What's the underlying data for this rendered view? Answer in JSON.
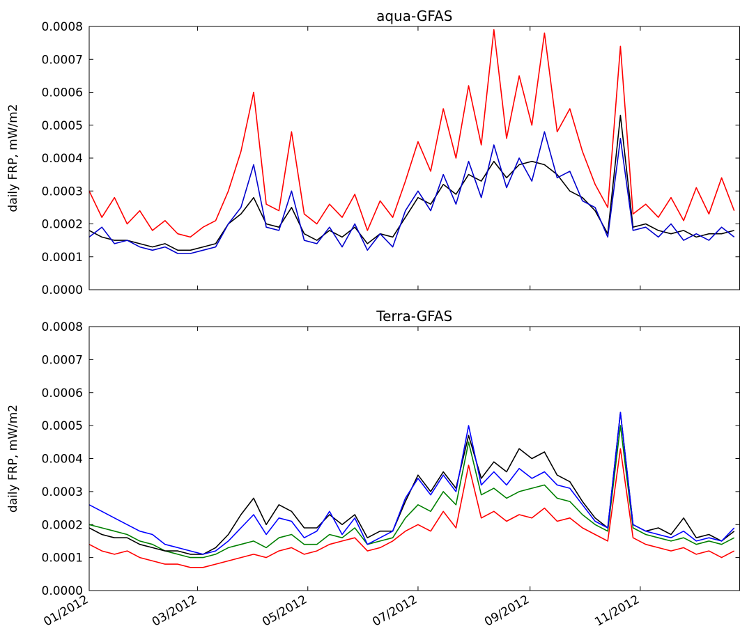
{
  "chart_data": [
    {
      "type": "line",
      "title": "aqua-GFAS",
      "y_label": "daily FRP, mW/m2",
      "x": [
        0,
        7,
        14,
        21,
        28,
        35,
        42,
        49,
        56,
        63,
        70,
        77,
        84,
        91,
        98,
        105,
        112,
        119,
        126,
        133,
        140,
        147,
        154,
        161,
        168,
        175,
        182,
        189,
        196,
        203,
        210,
        217,
        224,
        231,
        238,
        245,
        252,
        259,
        266,
        273,
        280,
        287,
        294,
        301,
        308,
        315,
        322,
        329,
        336,
        343,
        350,
        357
      ],
      "xlim": [
        0,
        360
      ],
      "xticks": [
        0,
        60,
        121,
        182,
        244,
        305
      ],
      "ylim": [
        0,
        0.0008
      ],
      "yticks": [
        {
          "value": 0,
          "label": "0.0000"
        },
        0.0001,
        0.0002,
        0.0003,
        0.0004,
        0.0005,
        0.0006,
        0.0007,
        0.0008
      ],
      "series": [
        {
          "color": "#ff0000",
          "values": [
            0.0003,
            0.00022,
            0.00028,
            0.0002,
            0.00024,
            0.00018,
            0.00021,
            0.00017,
            0.00016,
            0.00019,
            0.00021,
            0.0003,
            0.00042,
            0.0006,
            0.00026,
            0.00024,
            0.00048,
            0.00023,
            0.0002,
            0.00026,
            0.00022,
            0.00029,
            0.00018,
            0.00027,
            0.00022,
            0.00033,
            0.00045,
            0.00036,
            0.00055,
            0.0004,
            0.00062,
            0.00044,
            0.00079,
            0.00046,
            0.00065,
            0.0005,
            0.00078,
            0.00048,
            0.00055,
            0.00042,
            0.00032,
            0.00025,
            0.00074,
            0.00023,
            0.00026,
            0.00022,
            0.00028,
            0.00021,
            0.00031,
            0.00023,
            0.00034,
            0.00024
          ]
        },
        {
          "color": "#000000",
          "values": [
            0.00018,
            0.00016,
            0.00015,
            0.00015,
            0.00014,
            0.00013,
            0.00014,
            0.00012,
            0.00012,
            0.00013,
            0.00014,
            0.0002,
            0.00023,
            0.00028,
            0.0002,
            0.00019,
            0.00025,
            0.00017,
            0.00015,
            0.00018,
            0.00016,
            0.00019,
            0.00014,
            0.00017,
            0.00016,
            0.00022,
            0.00028,
            0.00026,
            0.00032,
            0.00029,
            0.00035,
            0.00033,
            0.00039,
            0.00034,
            0.00038,
            0.00039,
            0.00038,
            0.00035,
            0.0003,
            0.00028,
            0.00024,
            0.00017,
            0.00053,
            0.00019,
            0.0002,
            0.00018,
            0.00017,
            0.00018,
            0.00016,
            0.00017,
            0.00017,
            0.00018
          ]
        },
        {
          "color": "#0000cc",
          "values": [
            0.00016,
            0.00019,
            0.00014,
            0.00015,
            0.00013,
            0.00012,
            0.00013,
            0.00011,
            0.00011,
            0.00012,
            0.00013,
            0.0002,
            0.00025,
            0.00038,
            0.00019,
            0.00018,
            0.0003,
            0.00015,
            0.00014,
            0.00019,
            0.00013,
            0.0002,
            0.00012,
            0.00017,
            0.00013,
            0.00024,
            0.0003,
            0.00024,
            0.00035,
            0.00026,
            0.00039,
            0.00028,
            0.00044,
            0.00031,
            0.0004,
            0.00033,
            0.00048,
            0.00034,
            0.00036,
            0.00027,
            0.00025,
            0.00016,
            0.00046,
            0.00018,
            0.00019,
            0.00016,
            0.0002,
            0.00015,
            0.00017,
            0.00015,
            0.00019,
            0.00016
          ]
        }
      ]
    },
    {
      "type": "line",
      "title": "Terra-GFAS",
      "y_label": "daily FRP, mW/m2",
      "x": [
        0,
        7,
        14,
        21,
        28,
        35,
        42,
        49,
        56,
        63,
        70,
        77,
        84,
        91,
        98,
        105,
        112,
        119,
        126,
        133,
        140,
        147,
        154,
        161,
        168,
        175,
        182,
        189,
        196,
        203,
        210,
        217,
        224,
        231,
        238,
        245,
        252,
        259,
        266,
        273,
        280,
        287,
        294,
        301,
        308,
        315,
        322,
        329,
        336,
        343,
        350,
        357
      ],
      "xlim": [
        0,
        360
      ],
      "xticks": [
        {
          "value": 0,
          "label": "01/2012"
        },
        {
          "value": 60,
          "label": "03/2012"
        },
        {
          "value": 121,
          "label": "05/2012"
        },
        {
          "value": 182,
          "label": "07/2012"
        },
        {
          "value": 244,
          "label": "09/2012"
        },
        {
          "value": 305,
          "label": "11/2012"
        }
      ],
      "ylim": [
        0,
        0.0008
      ],
      "yticks": [
        {
          "value": 0,
          "label": "0.0000"
        },
        0.0001,
        0.0002,
        0.0003,
        0.0004,
        0.0005,
        0.0006,
        0.0007,
        0.0008
      ],
      "series": [
        {
          "color": "#ff0000",
          "values": [
            0.00014,
            0.00012,
            0.00011,
            0.00012,
            0.0001,
            9e-05,
            8e-05,
            8e-05,
            7e-05,
            7e-05,
            8e-05,
            9e-05,
            0.0001,
            0.00011,
            0.0001,
            0.00012,
            0.00013,
            0.00011,
            0.00012,
            0.00014,
            0.00015,
            0.00016,
            0.00012,
            0.00013,
            0.00015,
            0.00018,
            0.0002,
            0.00018,
            0.00024,
            0.00019,
            0.00038,
            0.00022,
            0.00024,
            0.00021,
            0.00023,
            0.00022,
            0.00025,
            0.00021,
            0.00022,
            0.00019,
            0.00017,
            0.00015,
            0.00043,
            0.00016,
            0.00014,
            0.00013,
            0.00012,
            0.00013,
            0.00011,
            0.00012,
            0.0001,
            0.00012
          ]
        },
        {
          "color": "#008000",
          "values": [
            0.0002,
            0.00019,
            0.00018,
            0.00017,
            0.00015,
            0.00014,
            0.00012,
            0.00011,
            0.0001,
            0.0001,
            0.00011,
            0.00013,
            0.00014,
            0.00015,
            0.00013,
            0.00016,
            0.00017,
            0.00014,
            0.00014,
            0.00017,
            0.00016,
            0.00019,
            0.00014,
            0.00015,
            0.00016,
            0.00022,
            0.00026,
            0.00024,
            0.0003,
            0.00026,
            0.00045,
            0.00029,
            0.00031,
            0.00028,
            0.0003,
            0.00031,
            0.00032,
            0.00028,
            0.00027,
            0.00023,
            0.0002,
            0.00018,
            0.0005,
            0.00019,
            0.00017,
            0.00016,
            0.00015,
            0.00016,
            0.00014,
            0.00015,
            0.00014,
            0.00016
          ]
        },
        {
          "color": "#000000",
          "values": [
            0.00019,
            0.00017,
            0.00016,
            0.00016,
            0.00014,
            0.00013,
            0.00012,
            0.00012,
            0.00011,
            0.00011,
            0.00013,
            0.00017,
            0.00023,
            0.00028,
            0.0002,
            0.00026,
            0.00024,
            0.00019,
            0.00019,
            0.00023,
            0.0002,
            0.00023,
            0.00016,
            0.00018,
            0.00018,
            0.00027,
            0.00035,
            0.0003,
            0.00036,
            0.00031,
            0.00047,
            0.00034,
            0.00039,
            0.00036,
            0.00043,
            0.0004,
            0.00042,
            0.00035,
            0.00033,
            0.00027,
            0.00022,
            0.00019,
            0.00054,
            0.0002,
            0.00018,
            0.00019,
            0.00017,
            0.00022,
            0.00016,
            0.00017,
            0.00015,
            0.00018
          ]
        },
        {
          "color": "#0000ff",
          "values": [
            0.00026,
            0.00024,
            0.00022,
            0.0002,
            0.00018,
            0.00017,
            0.00014,
            0.00013,
            0.00012,
            0.00011,
            0.00012,
            0.00015,
            0.00019,
            0.00023,
            0.00017,
            0.00022,
            0.00021,
            0.00016,
            0.00018,
            0.00024,
            0.00017,
            0.00022,
            0.00014,
            0.00016,
            0.00018,
            0.00028,
            0.00034,
            0.00029,
            0.00035,
            0.0003,
            0.0005,
            0.00032,
            0.00036,
            0.00032,
            0.00037,
            0.00034,
            0.00036,
            0.00032,
            0.00031,
            0.00026,
            0.00021,
            0.00019,
            0.00054,
            0.0002,
            0.00018,
            0.00017,
            0.00016,
            0.00018,
            0.00015,
            0.00016,
            0.00015,
            0.00019
          ]
        }
      ]
    }
  ]
}
